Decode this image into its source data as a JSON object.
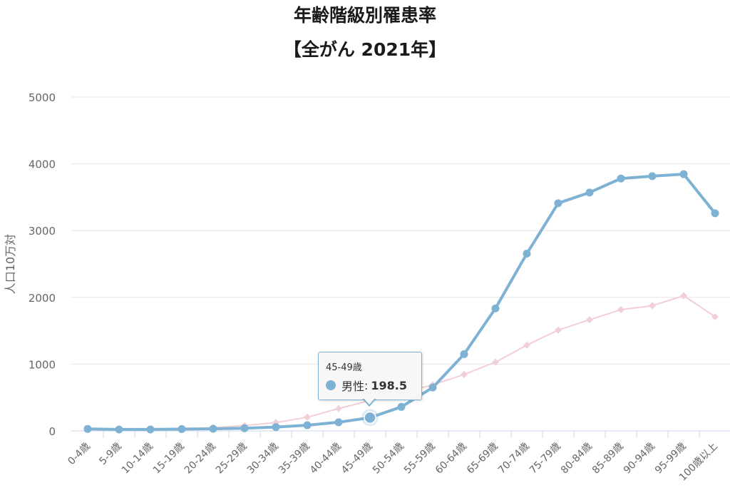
{
  "chart_data": {
    "type": "line",
    "title": "年齢階級別罹患率",
    "subtitle": "【全がん 2021年】",
    "ylabel": "人口10万対",
    "xlabel": "",
    "ylim": [
      0,
      5000
    ],
    "yticks": [
      0,
      1000,
      2000,
      3000,
      4000,
      5000
    ],
    "grid": true,
    "categories": [
      "0-4歳",
      "5-9歳",
      "10-14歳",
      "15-19歳",
      "20-24歳",
      "25-29歳",
      "30-34歳",
      "35-39歳",
      "40-44歳",
      "45-49歳",
      "50-54歳",
      "55-59歳",
      "60-64歳",
      "65-69歳",
      "70-74歳",
      "75-79歳",
      "80-84歳",
      "85-89歳",
      "90-94歳",
      "95-99歳",
      "100歳以上"
    ],
    "series": [
      {
        "name": "男性",
        "color": "#7eb2d4",
        "marker": "circle",
        "values": [
          30,
          22,
          22,
          28,
          32,
          40,
          58,
          85,
          130,
          198.5,
          360,
          650,
          1150,
          1835,
          2655,
          3410,
          3570,
          3780,
          3815,
          3845,
          3260
        ]
      },
      {
        "color": "#f2cfd8",
        "marker": "diamond",
        "values": [
          25,
          20,
          20,
          28,
          50,
          80,
          125,
          205,
          335,
          455,
          570,
          690,
          845,
          1030,
          1285,
          1510,
          1665,
          1815,
          1875,
          2025,
          1710
        ]
      }
    ],
    "tooltip": {
      "category": "45-49歳",
      "series_name": "男性",
      "value": "198.5",
      "separator": ":"
    }
  }
}
